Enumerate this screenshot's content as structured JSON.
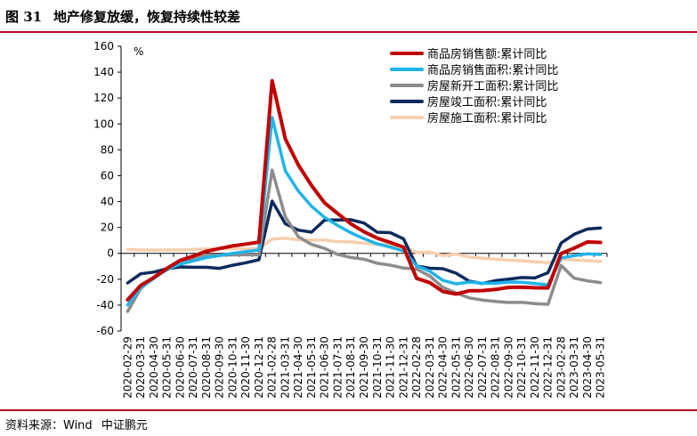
{
  "header": {
    "figure_number": "图 31",
    "title": "地产修复放缓，恢复持续性较差"
  },
  "footer": {
    "source_label": "资料来源：Wind",
    "org": "中证鹏元"
  },
  "chart_data": {
    "type": "line",
    "unit_label": "%",
    "ylim": [
      -60,
      160
    ],
    "yticks": [
      -60,
      -40,
      -20,
      0,
      20,
      40,
      60,
      80,
      100,
      120,
      140,
      160
    ],
    "grid": false,
    "legend_position": "top-right",
    "x": [
      "2020-02-29",
      "2020-03-31",
      "2020-04-30",
      "2020-05-31",
      "2020-06-30",
      "2020-07-31",
      "2020-08-31",
      "2020-09-30",
      "2020-10-31",
      "2020-11-30",
      "2020-12-31",
      "2021-02-28",
      "2021-03-31",
      "2021-04-30",
      "2021-05-31",
      "2021-06-30",
      "2021-07-31",
      "2021-08-31",
      "2021-09-30",
      "2021-10-31",
      "2021-11-30",
      "2021-12-31",
      "2022-02-28",
      "2022-03-31",
      "2022-04-30",
      "2022-05-31",
      "2022-06-30",
      "2022-07-31",
      "2022-08-31",
      "2022-09-30",
      "2022-10-31",
      "2022-11-30",
      "2022-12-31",
      "2023-02-28",
      "2023-03-31",
      "2023-04-30",
      "2023-05-31"
    ],
    "series": [
      {
        "name": "商品房销售额:累计同比",
        "color": "#c00000",
        "width": 4,
        "values": [
          -35.9,
          -24.7,
          -18.6,
          -11.6,
          -5.4,
          -2.1,
          1.6,
          3.7,
          5.8,
          7.2,
          8.7,
          133.4,
          88.5,
          68.2,
          52.4,
          38.9,
          30.7,
          22.8,
          16.6,
          11.8,
          8.4,
          4.8,
          -19.3,
          -22.7,
          -29.5,
          -31.5,
          -28.9,
          -28.8,
          -27.9,
          -26.3,
          -26.1,
          -26.6,
          -26.7,
          -0.1,
          4.1,
          8.8,
          8.4
        ]
      },
      {
        "name": "商品房销售面积:累计同比",
        "color": "#1fb4ea",
        "width": 3.5,
        "values": [
          -39.9,
          -26.3,
          -19.3,
          -12.3,
          -8.4,
          -5.8,
          -3.3,
          -1.8,
          0.0,
          1.3,
          2.6,
          104.9,
          63.8,
          48.1,
          36.3,
          27.7,
          21.5,
          15.9,
          11.3,
          7.3,
          4.8,
          1.9,
          -9.6,
          -13.8,
          -20.9,
          -23.6,
          -22.2,
          -23.1,
          -23.0,
          -22.2,
          -22.3,
          -23.3,
          -24.3,
          -3.6,
          -1.8,
          -0.4,
          -0.9
        ]
      },
      {
        "name": "房屋新开工面积:累计同比",
        "color": "#8c8c8c",
        "width": 3.5,
        "values": [
          -44.9,
          -27.2,
          -18.4,
          -12.8,
          -7.6,
          -3.6,
          -1.7,
          -1.4,
          -1.2,
          -1.0,
          -1.2,
          64.3,
          28.2,
          12.8,
          6.9,
          3.8,
          -0.9,
          -3.2,
          -4.5,
          -7.7,
          -9.1,
          -11.4,
          -12.2,
          -17.5,
          -26.3,
          -30.6,
          -34.4,
          -36.1,
          -37.2,
          -38.0,
          -37.8,
          -38.9,
          -39.4,
          -9.4,
          -19.2,
          -21.2,
          -22.6
        ]
      },
      {
        "name": "房屋竣工面积:累计同比",
        "color": "#0c2a5c",
        "width": 3.5,
        "values": [
          -22.9,
          -15.8,
          -14.5,
          -11.9,
          -10.5,
          -10.8,
          -10.8,
          -11.6,
          -9.2,
          -7.3,
          -4.9,
          40.4,
          22.9,
          17.9,
          16.4,
          25.7,
          25.7,
          26.0,
          23.4,
          16.3,
          16.0,
          11.2,
          -9.8,
          -11.5,
          -11.9,
          -15.3,
          -21.5,
          -23.3,
          -21.1,
          -19.9,
          -18.7,
          -19.0,
          -15.0,
          8.0,
          14.7,
          18.8,
          19.6
        ]
      },
      {
        "name": "房屋施工面积:累计同比",
        "color": "#f7cfae",
        "width": 3.5,
        "values": [
          2.9,
          2.6,
          2.5,
          2.6,
          2.6,
          3.1,
          3.3,
          3.6,
          3.7,
          3.4,
          3.7,
          11.0,
          11.8,
          10.5,
          10.3,
          10.2,
          9.0,
          8.9,
          7.9,
          7.1,
          6.9,
          5.2,
          0.7,
          1.0,
          -1.8,
          -0.5,
          -2.8,
          -3.7,
          -4.5,
          -5.3,
          -5.7,
          -6.5,
          -7.2,
          -4.4,
          -5.2,
          -5.6,
          -6.2
        ]
      }
    ]
  }
}
